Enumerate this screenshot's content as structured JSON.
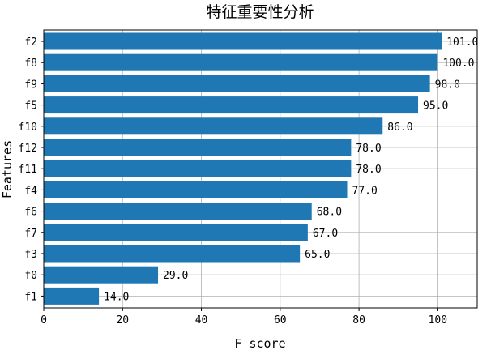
{
  "chart_data": {
    "type": "bar",
    "orientation": "horizontal",
    "title": "特征重要性分析",
    "xlabel": "F score",
    "ylabel": "Features",
    "xlim": [
      0,
      110
    ],
    "xticks": [
      0,
      20,
      40,
      60,
      80,
      100
    ],
    "grid": true,
    "categories": [
      "f2",
      "f8",
      "f9",
      "f5",
      "f10",
      "f12",
      "f11",
      "f4",
      "f6",
      "f7",
      "f3",
      "f0",
      "f1"
    ],
    "values": [
      101.0,
      100.0,
      98.0,
      95.0,
      86.0,
      78.0,
      78.0,
      77.0,
      68.0,
      67.0,
      65.0,
      29.0,
      14.0
    ],
    "data_labels": [
      "101.0",
      "100.0",
      "98.0",
      "95.0",
      "86.0",
      "78.0",
      "78.0",
      "77.0",
      "68.0",
      "67.0",
      "65.0",
      "29.0",
      "14.0"
    ],
    "bar_color": "#1f77b4"
  }
}
